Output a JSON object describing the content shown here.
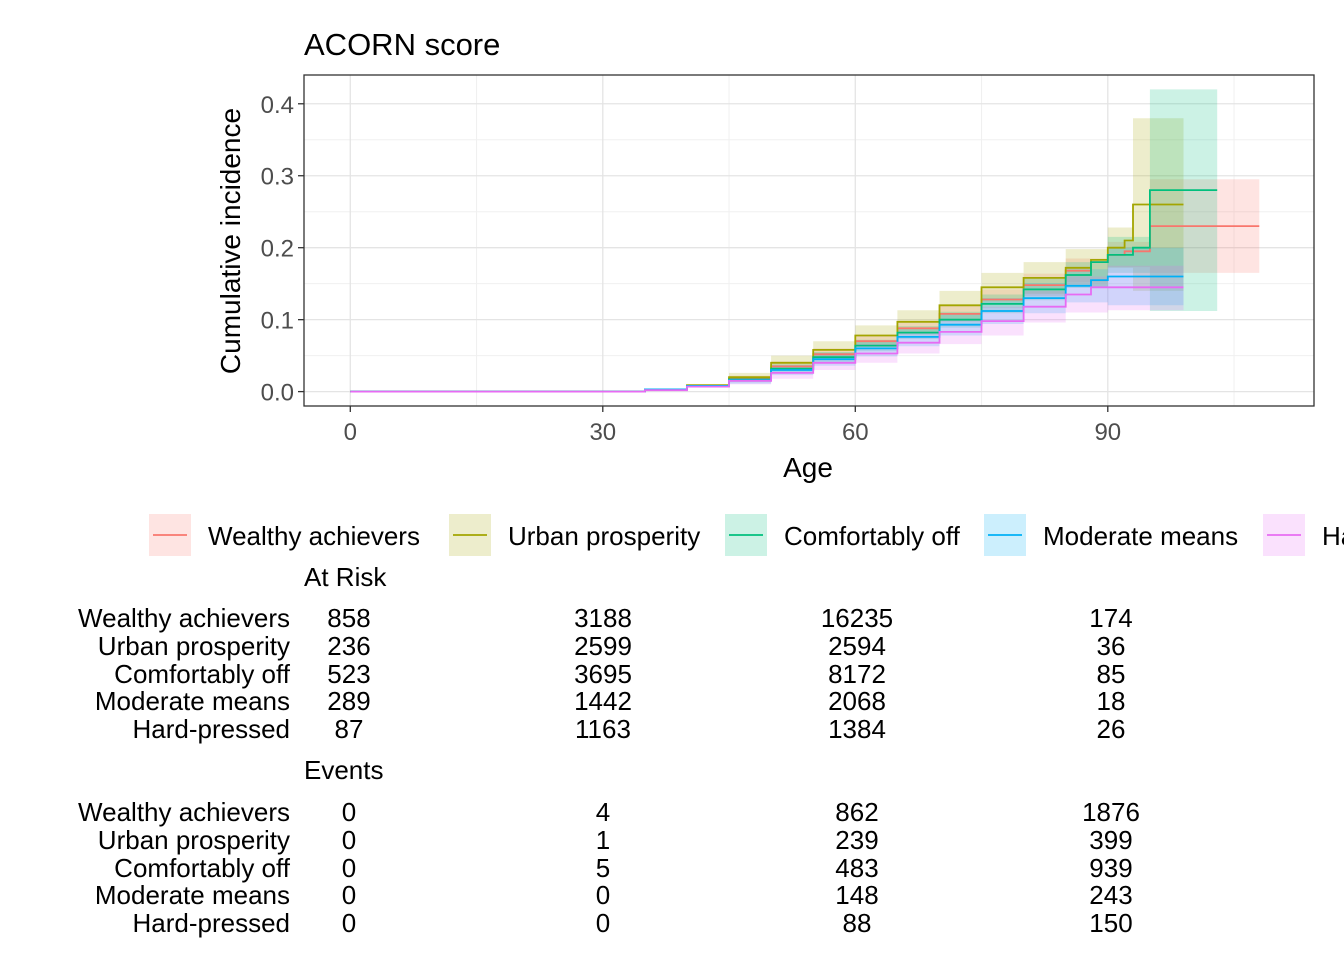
{
  "chart_data": {
    "type": "line",
    "title": "ACORN score",
    "xlabel": "Age",
    "ylabel": "Cumulative incidence",
    "x_ticks": [
      0,
      30,
      60,
      90
    ],
    "y_ticks": [
      "0.0",
      "0.1",
      "0.2",
      "0.3",
      "0.4"
    ],
    "xlim": [
      -5.5,
      114.5
    ],
    "ylim": [
      -0.02,
      0.44
    ],
    "grid": true,
    "legend_position": "bottom",
    "series": [
      {
        "name": "Wealthy achievers",
        "color": "#F8766D",
        "points": [
          [
            0,
            0
          ],
          [
            26,
            0
          ],
          [
            35,
            0.003
          ],
          [
            40,
            0.008
          ],
          [
            45,
            0.018
          ],
          [
            50,
            0.035
          ],
          [
            55,
            0.052
          ],
          [
            60,
            0.07
          ],
          [
            65,
            0.088
          ],
          [
            70,
            0.108
          ],
          [
            75,
            0.128
          ],
          [
            80,
            0.148
          ],
          [
            85,
            0.168
          ],
          [
            88,
            0.18
          ],
          [
            90,
            0.19
          ],
          [
            92,
            0.195
          ],
          [
            95,
            0.23
          ],
          [
            108,
            0.23
          ]
        ],
        "ci_upper": [
          [
            45,
            0.022
          ],
          [
            50,
            0.042
          ],
          [
            55,
            0.06
          ],
          [
            60,
            0.079
          ],
          [
            65,
            0.098
          ],
          [
            70,
            0.12
          ],
          [
            75,
            0.142
          ],
          [
            80,
            0.164
          ],
          [
            85,
            0.185
          ],
          [
            90,
            0.208
          ],
          [
            95,
            0.295
          ],
          [
            108,
            0.295
          ]
        ],
        "ci_lower": [
          [
            45,
            0.014
          ],
          [
            50,
            0.029
          ],
          [
            55,
            0.045
          ],
          [
            60,
            0.062
          ],
          [
            65,
            0.079
          ],
          [
            70,
            0.097
          ],
          [
            75,
            0.116
          ],
          [
            80,
            0.133
          ],
          [
            85,
            0.152
          ],
          [
            90,
            0.173
          ],
          [
            95,
            0.165
          ],
          [
            108,
            0.165
          ]
        ]
      },
      {
        "name": "Urban prosperity",
        "color": "#A3A500",
        "points": [
          [
            0,
            0
          ],
          [
            26,
            0
          ],
          [
            35,
            0.003
          ],
          [
            40,
            0.009
          ],
          [
            45,
            0.02
          ],
          [
            50,
            0.04
          ],
          [
            55,
            0.058
          ],
          [
            60,
            0.078
          ],
          [
            65,
            0.097
          ],
          [
            70,
            0.12
          ],
          [
            75,
            0.145
          ],
          [
            80,
            0.158
          ],
          [
            85,
            0.172
          ],
          [
            88,
            0.183
          ],
          [
            90,
            0.2
          ],
          [
            92,
            0.21
          ],
          [
            93,
            0.26
          ],
          [
            99,
            0.26
          ]
        ],
        "ci_upper": [
          [
            45,
            0.026
          ],
          [
            50,
            0.05
          ],
          [
            55,
            0.07
          ],
          [
            60,
            0.092
          ],
          [
            65,
            0.113
          ],
          [
            70,
            0.14
          ],
          [
            75,
            0.165
          ],
          [
            80,
            0.18
          ],
          [
            85,
            0.198
          ],
          [
            90,
            0.228
          ],
          [
            93,
            0.38
          ],
          [
            99,
            0.38
          ]
        ],
        "ci_lower": [
          [
            45,
            0.014
          ],
          [
            50,
            0.03
          ],
          [
            55,
            0.046
          ],
          [
            60,
            0.064
          ],
          [
            65,
            0.081
          ],
          [
            70,
            0.1
          ],
          [
            75,
            0.125
          ],
          [
            80,
            0.136
          ],
          [
            85,
            0.146
          ],
          [
            90,
            0.172
          ],
          [
            93,
            0.14
          ],
          [
            99,
            0.14
          ]
        ]
      },
      {
        "name": "Comfortably off",
        "color": "#00BF7D",
        "points": [
          [
            0,
            0
          ],
          [
            26,
            0
          ],
          [
            35,
            0.003
          ],
          [
            40,
            0.008
          ],
          [
            45,
            0.017
          ],
          [
            50,
            0.032
          ],
          [
            55,
            0.048
          ],
          [
            60,
            0.064
          ],
          [
            65,
            0.082
          ],
          [
            70,
            0.1
          ],
          [
            75,
            0.122
          ],
          [
            80,
            0.142
          ],
          [
            85,
            0.162
          ],
          [
            88,
            0.18
          ],
          [
            90,
            0.19
          ],
          [
            93,
            0.2
          ],
          [
            95,
            0.28
          ],
          [
            103,
            0.28
          ]
        ],
        "ci_upper": [
          [
            45,
            0.021
          ],
          [
            50,
            0.038
          ],
          [
            55,
            0.055
          ],
          [
            60,
            0.072
          ],
          [
            65,
            0.091
          ],
          [
            70,
            0.111
          ],
          [
            75,
            0.135
          ],
          [
            80,
            0.157
          ],
          [
            85,
            0.18
          ],
          [
            90,
            0.215
          ],
          [
            95,
            0.42
          ],
          [
            103,
            0.42
          ]
        ],
        "ci_lower": [
          [
            45,
            0.013
          ],
          [
            50,
            0.026
          ],
          [
            55,
            0.041
          ],
          [
            60,
            0.056
          ],
          [
            65,
            0.073
          ],
          [
            70,
            0.089
          ],
          [
            75,
            0.109
          ],
          [
            80,
            0.127
          ],
          [
            85,
            0.144
          ],
          [
            90,
            0.165
          ],
          [
            95,
            0.112
          ],
          [
            103,
            0.112
          ]
        ]
      },
      {
        "name": "Moderate means",
        "color": "#00B0F6",
        "points": [
          [
            0,
            0
          ],
          [
            26,
            0
          ],
          [
            35,
            0.003
          ],
          [
            40,
            0.008
          ],
          [
            45,
            0.016
          ],
          [
            50,
            0.03
          ],
          [
            55,
            0.045
          ],
          [
            60,
            0.06
          ],
          [
            65,
            0.076
          ],
          [
            70,
            0.093
          ],
          [
            75,
            0.112
          ],
          [
            80,
            0.13
          ],
          [
            85,
            0.147
          ],
          [
            88,
            0.155
          ],
          [
            90,
            0.16
          ],
          [
            99,
            0.16
          ]
        ],
        "ci_upper": [
          [
            45,
            0.021
          ],
          [
            50,
            0.037
          ],
          [
            55,
            0.054
          ],
          [
            60,
            0.071
          ],
          [
            65,
            0.089
          ],
          [
            70,
            0.108
          ],
          [
            75,
            0.13
          ],
          [
            80,
            0.151
          ],
          [
            85,
            0.17
          ],
          [
            90,
            0.2
          ],
          [
            99,
            0.2
          ]
        ],
        "ci_lower": [
          [
            45,
            0.011
          ],
          [
            50,
            0.023
          ],
          [
            55,
            0.036
          ],
          [
            60,
            0.049
          ],
          [
            65,
            0.063
          ],
          [
            70,
            0.078
          ],
          [
            75,
            0.094
          ],
          [
            80,
            0.109
          ],
          [
            85,
            0.124
          ],
          [
            90,
            0.12
          ],
          [
            99,
            0.12
          ]
        ]
      },
      {
        "name": "Hard-pressed",
        "color": "#E76BF3",
        "points": [
          [
            0,
            0
          ],
          [
            26,
            0
          ],
          [
            35,
            0.002
          ],
          [
            40,
            0.007
          ],
          [
            45,
            0.015
          ],
          [
            50,
            0.026
          ],
          [
            55,
            0.04
          ],
          [
            60,
            0.053
          ],
          [
            65,
            0.068
          ],
          [
            70,
            0.083
          ],
          [
            75,
            0.098
          ],
          [
            80,
            0.118
          ],
          [
            85,
            0.135
          ],
          [
            88,
            0.145
          ],
          [
            90,
            0.145
          ],
          [
            99,
            0.145
          ]
        ],
        "ci_upper": [
          [
            45,
            0.021
          ],
          [
            50,
            0.034
          ],
          [
            55,
            0.05
          ],
          [
            60,
            0.066
          ],
          [
            65,
            0.083
          ],
          [
            70,
            0.1
          ],
          [
            75,
            0.118
          ],
          [
            80,
            0.14
          ],
          [
            85,
            0.16
          ],
          [
            90,
            0.175
          ],
          [
            99,
            0.175
          ]
        ],
        "ci_lower": [
          [
            45,
            0.01
          ],
          [
            50,
            0.018
          ],
          [
            55,
            0.03
          ],
          [
            60,
            0.04
          ],
          [
            65,
            0.053
          ],
          [
            70,
            0.066
          ],
          [
            75,
            0.078
          ],
          [
            80,
            0.096
          ],
          [
            85,
            0.11
          ],
          [
            90,
            0.113
          ],
          [
            99,
            0.113
          ]
        ]
      }
    ]
  },
  "legend_items": [
    "Wealthy achievers",
    "Urban prosperity",
    "Comfortably off",
    "Moderate means",
    "Hard-pressed"
  ],
  "at_risk": {
    "title": "At Risk",
    "rows": [
      {
        "label": "Wealthy achievers",
        "values": [
          "858",
          "3188",
          "16235",
          "174"
        ]
      },
      {
        "label": "Urban prosperity",
        "values": [
          "236",
          "2599",
          "2594",
          "36"
        ]
      },
      {
        "label": "Comfortably off",
        "values": [
          "523",
          "3695",
          "8172",
          "85"
        ]
      },
      {
        "label": "Moderate means",
        "values": [
          "289",
          "1442",
          "2068",
          "18"
        ]
      },
      {
        "label": "Hard-pressed",
        "values": [
          "87",
          "1163",
          "1384",
          "26"
        ]
      }
    ]
  },
  "events": {
    "title": "Events",
    "rows": [
      {
        "label": "Wealthy achievers",
        "values": [
          "0",
          "4",
          "862",
          "1876"
        ]
      },
      {
        "label": "Urban prosperity",
        "values": [
          "0",
          "1",
          "239",
          "399"
        ]
      },
      {
        "label": "Comfortably off",
        "values": [
          "0",
          "5",
          "483",
          "939"
        ]
      },
      {
        "label": "Moderate means",
        "values": [
          "0",
          "0",
          "148",
          "243"
        ]
      },
      {
        "label": "Hard-pressed",
        "values": [
          "0",
          "0",
          "88",
          "150"
        ]
      }
    ]
  }
}
